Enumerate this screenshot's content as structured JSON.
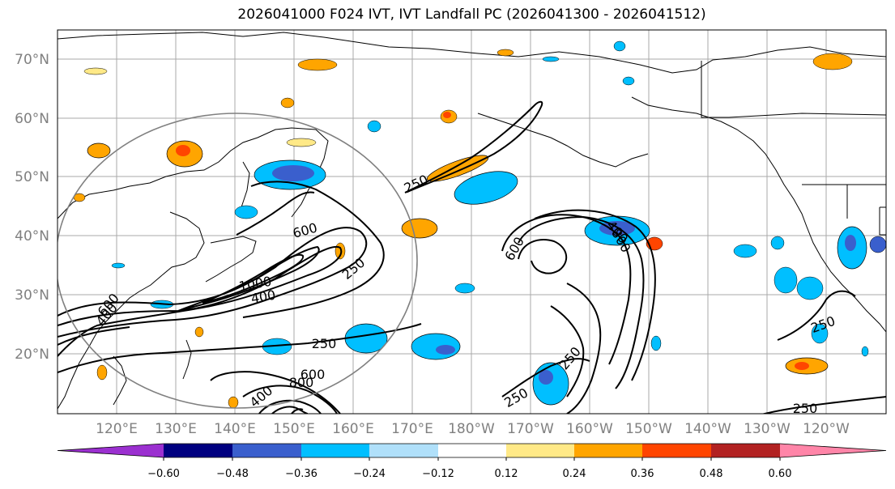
{
  "title": "2026041000 F024 IVT, IVT Landfall PC (2026041300 - 2026041512)",
  "lat_labels": [
    "70°N",
    "60°N",
    "50°N",
    "40°N",
    "30°N",
    "20°N"
  ],
  "lon_labels": [
    "120°E",
    "130°E",
    "140°E",
    "150°E",
    "160°E",
    "170°E",
    "180°W",
    "170°W",
    "160°W",
    "150°W",
    "140°W",
    "130°W",
    "120°W"
  ],
  "colorbar": {
    "colors": [
      "#9b30d0",
      "#000080",
      "#3a5fcd",
      "#00bfff",
      "#b0e0fa",
      "#ffffff",
      "#ffe987",
      "#ffa500",
      "#ff4500",
      "#b22222",
      "#ff85a8"
    ],
    "tick_labels": [
      "−0.60",
      "−0.48",
      "−0.36",
      "−0.24",
      "−0.12",
      "0.12",
      "0.24",
      "0.36",
      "0.48",
      "0.60"
    ]
  },
  "contour_labels": [
    "250",
    "600",
    "250",
    "1000",
    "400",
    "400",
    "600",
    "250",
    "600",
    "800",
    "400",
    "600",
    "400",
    "250",
    "250",
    "250",
    "250",
    "800"
  ]
}
